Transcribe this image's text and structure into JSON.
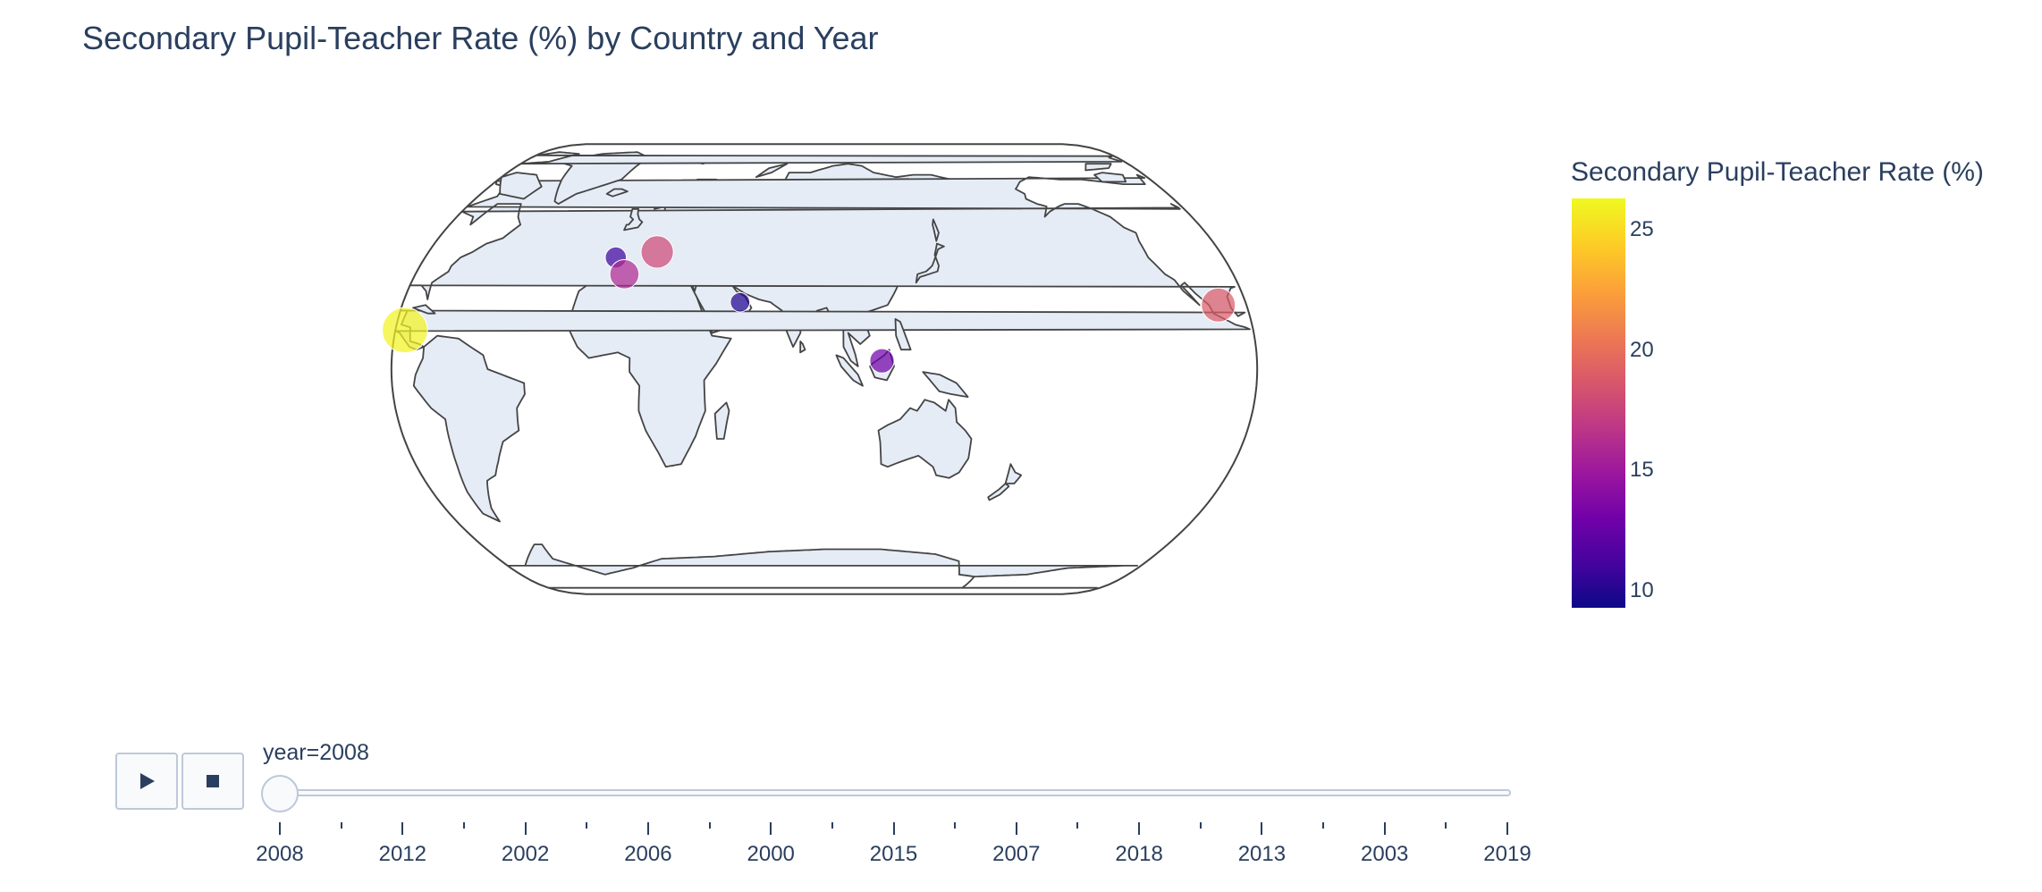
{
  "title": "Secondary Pupil-Teacher Rate (%) by Country and Year",
  "colorbar": {
    "title": "Secondary Pupil-Teacher Rate (%)",
    "ticks": [
      "25",
      "20",
      "15",
      "10"
    ],
    "colorscale": [
      "#0d0887",
      "#46039f",
      "#7201a8",
      "#9c179e",
      "#bd3786",
      "#d8576b",
      "#ed7953",
      "#fb9f3a",
      "#fdca26",
      "#f0f921"
    ]
  },
  "map": {
    "projection": "natural earth",
    "land_color": "#e5ecf6",
    "coastline_color": "#444444",
    "markers": [
      {
        "lon": -4,
        "lat": 40,
        "value": 11
      },
      {
        "lon": 2,
        "lat": 34,
        "value": 16
      },
      {
        "lon": 14,
        "lat": 42,
        "value": 18
      },
      {
        "lon": 54,
        "lat": 24,
        "value": 10
      },
      {
        "lon": 114,
        "lat": 3,
        "value": 13
      },
      {
        "lon": -102,
        "lat": 23,
        "value": 19
      },
      {
        "lon": -86,
        "lat": 14,
        "value": 26
      }
    ]
  },
  "controls": {
    "play_icon": "play-icon",
    "stop_icon": "stop-icon"
  },
  "slider": {
    "current_label": "year=2008",
    "steps": [
      "2008",
      "2012",
      "2002",
      "2006",
      "2000",
      "2015",
      "2007",
      "2018",
      "2013",
      "2003",
      "2019"
    ]
  }
}
